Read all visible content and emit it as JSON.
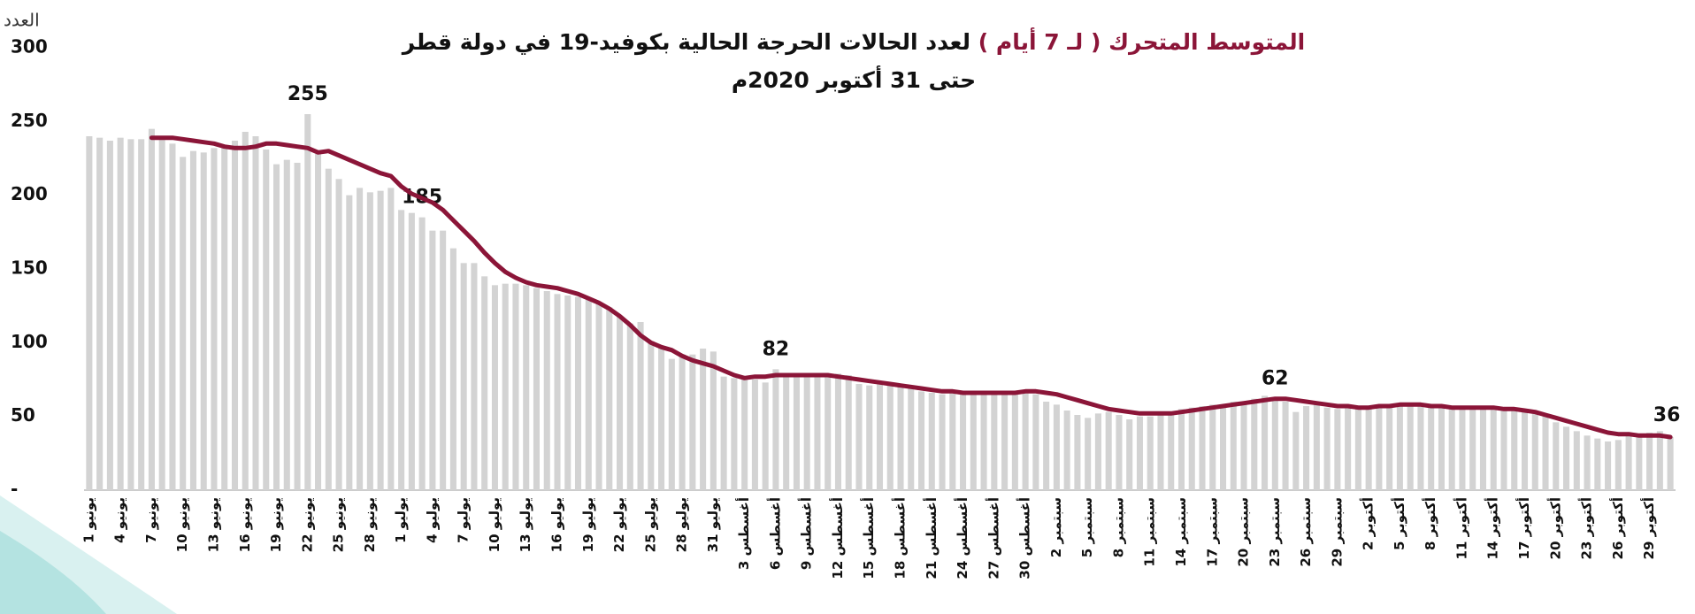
{
  "chart_data": {
    "type": "bar_line",
    "title_highlight": "المتوسط المتحرك ( لـ 7 أيام )",
    "title": "لعدد الحالات الحرجة الحالية بكوفيد-19 في دولة قطر",
    "subtitle": "حتى 31 أكتوبر 2020م",
    "y_label": "العدد",
    "ylim": [
      0,
      300
    ],
    "yticks": [
      {
        "value": 0,
        "label": "-"
      },
      50,
      100,
      150,
      200,
      250,
      300
    ],
    "categories": [
      "1 يونيو",
      null,
      null,
      "4 يونيو",
      null,
      null,
      "7 يونيو",
      null,
      null,
      "10 يونيو",
      null,
      null,
      "13 يونيو",
      null,
      null,
      "16 يونيو",
      null,
      null,
      "19 يونيو",
      null,
      null,
      "22 يونيو",
      null,
      null,
      "25 يونيو",
      null,
      null,
      "28 يونيو",
      null,
      null,
      "1 يوليو",
      null,
      null,
      "4 يوليو",
      null,
      null,
      "7 يوليو",
      null,
      null,
      "10 يوليو",
      null,
      null,
      "13 يوليو",
      null,
      null,
      "16 يوليو",
      null,
      null,
      "19 يوليو",
      null,
      null,
      "22 يوليو",
      null,
      null,
      "25 يوليو",
      null,
      null,
      "28 يوليو",
      null,
      null,
      "31 يوليو",
      null,
      null,
      "3 أغسطس",
      null,
      null,
      "6 أغسطس",
      null,
      null,
      "9 أغسطس",
      null,
      null,
      "12 أغسطس",
      null,
      null,
      "15 أغسطس",
      null,
      null,
      "18 أغسطس",
      null,
      null,
      "21 أغسطس",
      null,
      null,
      "24 أغسطس",
      null,
      null,
      "27 أغسطس",
      null,
      null,
      "30 أغسطس",
      null,
      null,
      "2 سبتمبر",
      null,
      null,
      "5 سبتمبر",
      null,
      null,
      "8 سبتمبر",
      null,
      null,
      "11 سبتمبر",
      null,
      null,
      "14 سبتمبر",
      null,
      null,
      "17 سبتمبر",
      null,
      null,
      "20 سبتمبر",
      null,
      null,
      "23 سبتمبر",
      null,
      null,
      "26 سبتمبر",
      null,
      null,
      "29 سبتمبر",
      null,
      null,
      "2 أكتوبر",
      null,
      null,
      "5 أكتوبر",
      null,
      null,
      "8 أكتوبر",
      null,
      null,
      "11 أكتوبر",
      null,
      null,
      "14 أكتوبر",
      null,
      null,
      "17 أكتوبر",
      null,
      null,
      "20 أكتوبر",
      null,
      null,
      "23 أكتوبر",
      null,
      null,
      "26 أكتوبر",
      null,
      null,
      "29 أكتوبر",
      null,
      null
    ],
    "series": [
      {
        "kind": "bar",
        "color": "#d3d3d3",
        "labeled_points": [
          21,
          32,
          66,
          114
        ],
        "values": [
          240,
          239,
          237,
          239,
          238,
          238,
          245,
          240,
          235,
          226,
          230,
          229,
          232,
          234,
          237,
          243,
          240,
          231,
          221,
          224,
          222,
          255,
          228,
          218,
          211,
          200,
          205,
          202,
          203,
          205,
          190,
          188,
          185,
          176,
          176,
          164,
          154,
          154,
          145,
          139,
          140,
          140,
          139,
          137,
          135,
          133,
          132,
          131,
          129,
          127,
          124,
          118,
          113,
          114,
          101,
          97,
          89,
          92,
          92,
          96,
          94,
          77,
          76,
          76,
          75,
          73,
          82,
          77,
          78,
          79,
          78,
          79,
          79,
          78,
          72,
          71,
          73,
          72,
          70,
          69,
          67,
          66,
          65,
          66,
          66,
          65,
          66,
          67,
          66,
          66,
          66,
          65,
          60,
          58,
          54,
          51,
          49,
          52,
          53,
          51,
          48,
          50,
          50,
          51,
          53,
          55,
          56,
          57,
          58,
          58,
          60,
          60,
          62,
          64,
          62,
          60,
          53,
          57,
          58,
          56,
          55,
          56,
          56,
          57,
          58,
          58,
          57,
          57,
          57,
          57,
          56,
          56,
          55,
          55,
          56,
          55,
          55,
          55,
          54,
          53,
          50,
          46,
          43,
          40,
          37,
          35,
          33,
          34,
          37,
          38,
          39,
          40,
          36
        ]
      },
      {
        "kind": "line",
        "color": "#8b1538",
        "labeled_points": [
          152
        ],
        "values": [
          null,
          null,
          null,
          null,
          null,
          null,
          239,
          239,
          239,
          238,
          237,
          236,
          235,
          233,
          232,
          232,
          233,
          235,
          235,
          234,
          233,
          232,
          229,
          230,
          227,
          224,
          221,
          218,
          215,
          213,
          206,
          201,
          198,
          195,
          190,
          183,
          176,
          169,
          161,
          154,
          148,
          144,
          141,
          139,
          138,
          137,
          135,
          133,
          130,
          127,
          123,
          118,
          112,
          105,
          100,
          97,
          95,
          91,
          88,
          86,
          84,
          81,
          78,
          76,
          77,
          77,
          78,
          78,
          78,
          78,
          78,
          78,
          77,
          76,
          75,
          74,
          73,
          72,
          71,
          70,
          69,
          68,
          67,
          67,
          66,
          66,
          66,
          66,
          66,
          66,
          67,
          67,
          66,
          65,
          63,
          61,
          59,
          57,
          55,
          54,
          53,
          52,
          52,
          52,
          52,
          53,
          54,
          55,
          56,
          57,
          58,
          59,
          60,
          61,
          62,
          62,
          61,
          60,
          59,
          58,
          57,
          57,
          56,
          56,
          57,
          57,
          58,
          58,
          58,
          57,
          57,
          56,
          56,
          56,
          56,
          56,
          55,
          55,
          54,
          53,
          51,
          49,
          47,
          45,
          43,
          41,
          39,
          38,
          38,
          37,
          37,
          37,
          36
        ]
      }
    ]
  }
}
